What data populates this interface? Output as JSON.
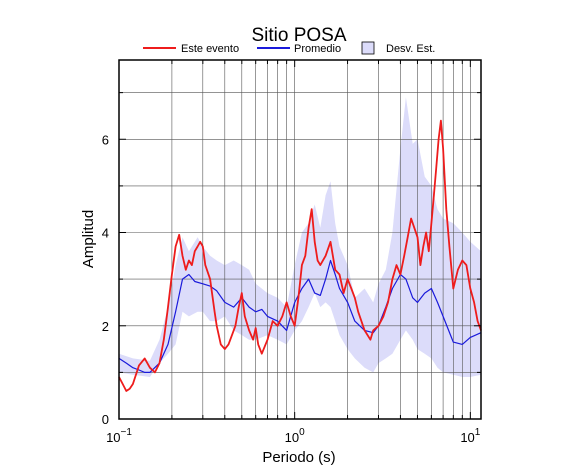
{
  "chart_data": {
    "type": "line",
    "title": "Sitio POSA",
    "xlabel": "Periodo (s)",
    "ylabel": "Amplitud",
    "xscale": "log",
    "xlim": [
      0.1,
      11.5
    ],
    "ylim": [
      0,
      7.7
    ],
    "x_ticks": [
      {
        "value": 0.1,
        "base": "10",
        "exp": "−1"
      },
      {
        "value": 1,
        "base": "10",
        "exp": "0"
      },
      {
        "value": 10,
        "base": "10",
        "exp": "1"
      }
    ],
    "y_ticks": [
      0,
      2,
      4,
      6
    ],
    "grid": true,
    "legend_position": "top",
    "legend": [
      {
        "label": "Este evento",
        "type": "line",
        "color": "#ee1c1c"
      },
      {
        "label": "Promedio",
        "type": "line",
        "color": "#1a1adb"
      },
      {
        "label": "Desv. Est.",
        "type": "band",
        "color": "#dcdcfa"
      }
    ],
    "band": {
      "name": "Desv. Est.",
      "x": [
        0.1,
        0.12,
        0.15,
        0.17,
        0.19,
        0.21,
        0.23,
        0.25,
        0.28,
        0.3,
        0.33,
        0.36,
        0.4,
        0.45,
        0.5,
        0.55,
        0.6,
        0.7,
        0.8,
        0.9,
        1.0,
        1.1,
        1.2,
        1.3,
        1.4,
        1.5,
        1.6,
        1.7,
        1.8,
        2.0,
        2.2,
        2.5,
        2.8,
        3.0,
        3.3,
        3.6,
        4.0,
        4.3,
        4.7,
        5.0,
        5.5,
        6.0,
        6.5,
        7.0,
        8.0,
        9.0,
        10.0,
        11.5
      ],
      "upper": [
        1.4,
        1.3,
        1.25,
        1.7,
        2.4,
        3.3,
        3.9,
        3.6,
        3.9,
        3.7,
        3.5,
        3.4,
        3.3,
        3.4,
        3.3,
        3.2,
        2.9,
        2.7,
        2.6,
        2.4,
        3.3,
        4.0,
        4.2,
        4.6,
        4.1,
        4.8,
        5.1,
        4.2,
        3.7,
        3.3,
        2.6,
        2.8,
        2.5,
        2.9,
        3.2,
        4.0,
        5.8,
        6.9,
        5.9,
        6.0,
        5.2,
        5.0,
        4.5,
        4.3,
        4.2,
        4.0,
        3.8,
        3.6
      ],
      "lower": [
        1.0,
        0.95,
        0.9,
        1.2,
        1.4,
        1.6,
        2.3,
        2.2,
        2.3,
        2.3,
        2.1,
        2.1,
        2.2,
        1.9,
        1.8,
        1.7,
        1.7,
        1.8,
        1.7,
        1.6,
        1.9,
        2.1,
        2.4,
        2.7,
        2.4,
        2.5,
        2.4,
        2.1,
        1.8,
        1.5,
        1.3,
        1.1,
        1.0,
        1.2,
        1.3,
        1.4,
        1.7,
        1.9,
        1.7,
        1.5,
        1.4,
        1.3,
        1.1,
        1.0,
        0.95,
        0.9,
        0.9,
        0.95
      ]
    },
    "series": [
      {
        "name": "Este evento",
        "color": "#ee1c1c",
        "x": [
          0.1,
          0.105,
          0.11,
          0.115,
          0.12,
          0.13,
          0.14,
          0.15,
          0.16,
          0.17,
          0.18,
          0.19,
          0.2,
          0.21,
          0.22,
          0.23,
          0.24,
          0.25,
          0.26,
          0.27,
          0.28,
          0.29,
          0.3,
          0.31,
          0.33,
          0.35,
          0.36,
          0.38,
          0.4,
          0.42,
          0.44,
          0.46,
          0.48,
          0.5,
          0.52,
          0.55,
          0.58,
          0.6,
          0.62,
          0.65,
          0.7,
          0.75,
          0.8,
          0.85,
          0.9,
          0.95,
          1.0,
          1.05,
          1.1,
          1.15,
          1.2,
          1.25,
          1.3,
          1.35,
          1.4,
          1.5,
          1.6,
          1.7,
          1.8,
          1.9,
          2.0,
          2.1,
          2.2,
          2.3,
          2.5,
          2.7,
          2.8,
          3.0,
          3.2,
          3.4,
          3.6,
          3.8,
          4.0,
          4.2,
          4.4,
          4.6,
          4.8,
          5.0,
          5.2,
          5.4,
          5.6,
          5.8,
          6.0,
          6.2,
          6.4,
          6.6,
          6.8,
          7.0,
          7.3,
          7.6,
          8.0,
          8.5,
          9.0,
          9.5,
          10.0,
          10.5,
          11.0,
          11.5
        ],
        "values": [
          0.9,
          0.75,
          0.6,
          0.65,
          0.75,
          1.15,
          1.3,
          1.1,
          1.0,
          1.2,
          1.7,
          2.4,
          3.1,
          3.7,
          3.95,
          3.5,
          3.2,
          3.4,
          3.3,
          3.6,
          3.7,
          3.8,
          3.7,
          3.3,
          3.0,
          2.3,
          2.0,
          1.6,
          1.5,
          1.6,
          1.8,
          2.0,
          2.4,
          2.7,
          2.2,
          1.9,
          1.7,
          1.95,
          1.6,
          1.4,
          1.7,
          2.1,
          2.0,
          2.2,
          2.5,
          2.2,
          2.0,
          2.6,
          3.3,
          3.5,
          4.1,
          4.5,
          3.8,
          3.4,
          3.3,
          3.5,
          3.8,
          3.2,
          3.1,
          2.7,
          3.0,
          2.8,
          2.6,
          2.3,
          1.9,
          1.7,
          1.9,
          2.0,
          2.2,
          2.5,
          3.0,
          3.3,
          3.1,
          3.5,
          3.9,
          4.3,
          4.1,
          3.9,
          3.3,
          3.7,
          4.0,
          3.6,
          4.2,
          4.8,
          5.4,
          6.0,
          6.4,
          5.8,
          4.5,
          3.7,
          2.8,
          3.2,
          3.4,
          3.3,
          2.8,
          2.5,
          2.1,
          1.9
        ]
      },
      {
        "name": "Promedio",
        "color": "#1a1adb",
        "x": [
          0.1,
          0.11,
          0.12,
          0.13,
          0.14,
          0.15,
          0.17,
          0.19,
          0.21,
          0.23,
          0.25,
          0.27,
          0.3,
          0.33,
          0.36,
          0.4,
          0.45,
          0.5,
          0.55,
          0.6,
          0.65,
          0.7,
          0.8,
          0.9,
          1.0,
          1.1,
          1.2,
          1.3,
          1.4,
          1.5,
          1.6,
          1.7,
          1.8,
          2.0,
          2.2,
          2.5,
          2.8,
          3.0,
          3.3,
          3.6,
          4.0,
          4.3,
          4.7,
          5.0,
          5.5,
          6.0,
          6.5,
          7.0,
          8.0,
          9.0,
          10.0,
          11.5
        ],
        "values": [
          1.3,
          1.2,
          1.1,
          1.05,
          1.0,
          1.0,
          1.2,
          1.6,
          2.3,
          3.0,
          3.1,
          2.95,
          2.9,
          2.85,
          2.75,
          2.5,
          2.4,
          2.6,
          2.4,
          2.3,
          2.35,
          2.2,
          2.1,
          1.9,
          2.5,
          2.8,
          3.0,
          2.7,
          2.65,
          3.0,
          3.4,
          3.1,
          2.8,
          2.5,
          2.1,
          1.9,
          1.85,
          2.0,
          2.4,
          2.8,
          3.1,
          3.0,
          2.6,
          2.5,
          2.7,
          2.8,
          2.5,
          2.2,
          1.65,
          1.6,
          1.75,
          1.85
        ]
      }
    ]
  }
}
